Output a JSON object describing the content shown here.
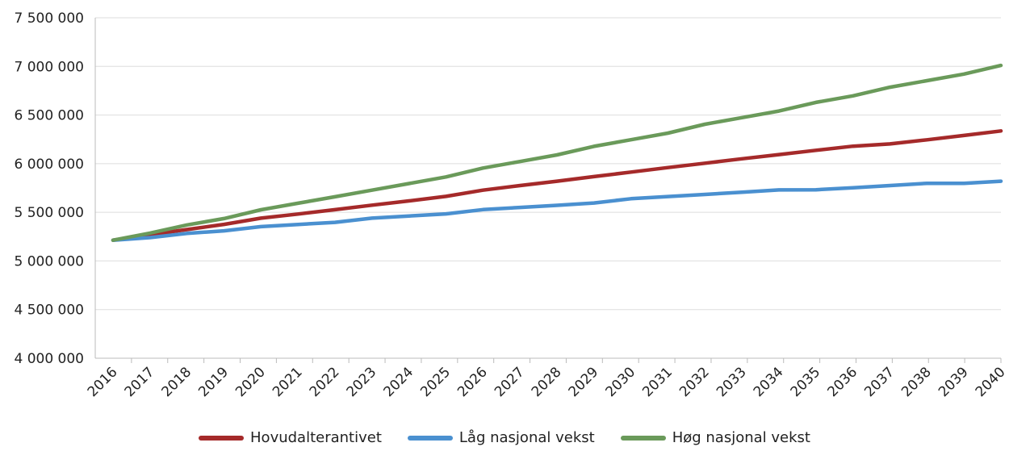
{
  "chart_data": {
    "type": "line",
    "categories": [
      "2016",
      "2017",
      "2018",
      "2019",
      "2020",
      "2021",
      "2022",
      "2023",
      "2024",
      "2025",
      "2026",
      "2027",
      "2028",
      "2029",
      "2030",
      "2031",
      "2032",
      "2033",
      "2034",
      "2035",
      "2036",
      "2037",
      "2038",
      "2039",
      "2040"
    ],
    "ylim": [
      4000000,
      7500000
    ],
    "yticks": [
      4000000,
      4500000,
      5000000,
      5500000,
      6000000,
      6500000,
      7000000,
      7500000
    ],
    "ytick_labels": [
      "4 000 000",
      "4 500 000",
      "5 000 000",
      "5 500 000",
      "6 000 000",
      "6 500 000",
      "7 000 000",
      "7 500 000"
    ],
    "grid": true,
    "legend_position": "bottom",
    "series": [
      {
        "name": "Hovudalterantivet",
        "color": "#a52a2a",
        "values": [
          5213000,
          5270000,
          5323000,
          5376000,
          5440000,
          5482000,
          5527000,
          5573000,
          5617000,
          5664000,
          5728000,
          5775000,
          5820000,
          5867000,
          5913000,
          5960000,
          6005000,
          6050000,
          6093000,
          6137000,
          6180000,
          6203000,
          6245000,
          6290000,
          6336000
        ]
      },
      {
        "name": "Låg nasjonal vekst",
        "color": "#4a90d0",
        "values": [
          5213000,
          5240000,
          5283000,
          5310000,
          5353000,
          5375000,
          5397000,
          5440000,
          5462000,
          5484000,
          5528000,
          5550000,
          5572000,
          5596000,
          5640000,
          5662000,
          5684000,
          5707000,
          5730000,
          5732000,
          5752000,
          5775000,
          5798000,
          5797000,
          5820000
        ]
      },
      {
        "name": "Høg nasjonal vekst",
        "color": "#6a9a5a",
        "values": [
          5213000,
          5286000,
          5370000,
          5436000,
          5526000,
          5593000,
          5660000,
          5728000,
          5796000,
          5864000,
          5955000,
          6022000,
          6090000,
          6178000,
          6246000,
          6314000,
          6405000,
          6473000,
          6541000,
          6630000,
          6697000,
          6786000,
          6853000,
          6921000,
          7010000
        ]
      }
    ]
  }
}
